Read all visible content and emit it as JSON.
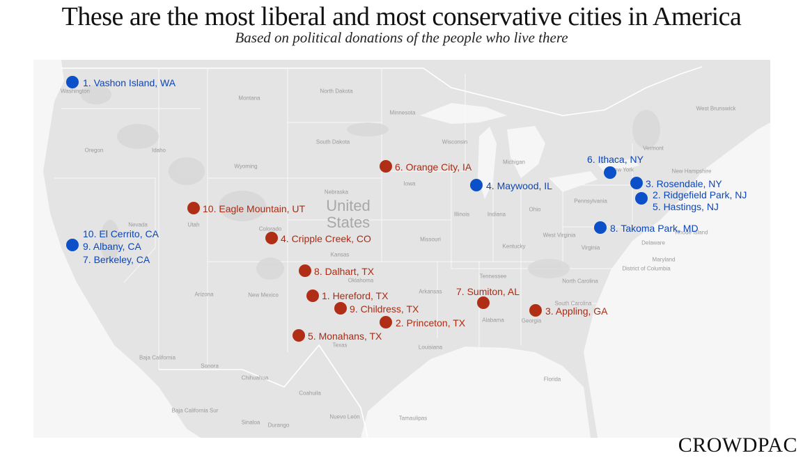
{
  "title": "These are the most liberal and most conservative cities in America",
  "subtitle": "Based on political donations of the people who live there",
  "logo": "CROWDPAC",
  "colors": {
    "liberal": "#0b4fc9",
    "conservative": "#b02e16",
    "land": "#e4e4e4",
    "water": "#f6f6f6"
  },
  "country_label": "United States",
  "geo_labels": [
    "Washington",
    "Oregon",
    "Nevada",
    "Utah",
    "Idaho",
    "Wyoming",
    "Colorado",
    "Arizona",
    "New Mexico",
    "Montana",
    "North Dakota",
    "South Dakota",
    "Nebraska",
    "Oklahoma",
    "Texas",
    "Kansas",
    "Minnesota",
    "Wisconsin",
    "Iowa",
    "Illinois",
    "Missouri",
    "Arkansas",
    "Louisiana",
    "Tennessee",
    "Kentucky",
    "Alabama",
    "Georgia",
    "Indiana",
    "Ohio",
    "Michigan",
    "West Virginia",
    "Virginia",
    "North Carolina",
    "South Carolina",
    "Florida",
    "Pennsylvania",
    "New York",
    "Vermont",
    "New Hampshire",
    "West Brunswick",
    "Delaware",
    "Maryland",
    "District of Columbia",
    "Rhode Island",
    "Baja California",
    "Sonora",
    "Chihuahua",
    "Coahuila",
    "Nuevo León",
    "Durango",
    "Sinaloa",
    "Baja California Sur",
    "Tamaulipas"
  ],
  "cities": {
    "liberal": [
      {
        "label": "1. Vashon Island, WA"
      },
      {
        "label": "6. Ithaca, NY"
      },
      {
        "label": "3. Rosendale, NY"
      },
      {
        "label": "2. Ridgefield Park, NJ"
      },
      {
        "label": "5. Hastings, NJ"
      },
      {
        "label": "4. Maywood, IL"
      },
      {
        "label": "8. Takoma Park, MD"
      },
      {
        "label": "10. El Cerrito, CA"
      },
      {
        "label": "9. Albany, CA"
      },
      {
        "label": "7. Berkeley, CA"
      }
    ],
    "conservative": [
      {
        "label": "6. Orange City, IA"
      },
      {
        "label": "10. Eagle Mountain, UT"
      },
      {
        "label": "4. Cripple Creek, CO"
      },
      {
        "label": "8. Dalhart, TX"
      },
      {
        "label": "1. Hereford, TX"
      },
      {
        "label": "9. Childress, TX"
      },
      {
        "label": "2. Princeton, TX"
      },
      {
        "label": "5. Monahans, TX"
      },
      {
        "label": "7. Sumiton, AL"
      },
      {
        "label": "3. Appling, GA"
      }
    ]
  }
}
